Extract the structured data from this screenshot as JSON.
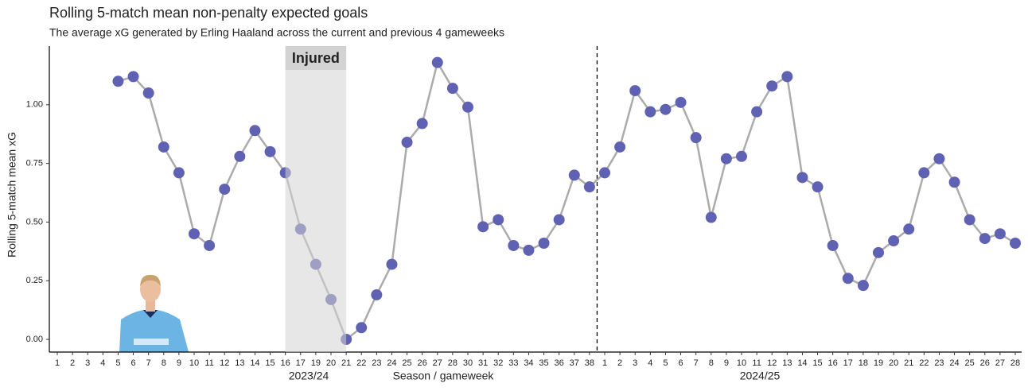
{
  "chart_data": {
    "type": "line",
    "title": "Rolling 5-match mean non-penalty expected goals",
    "subtitle": "The average xG generated by Erling Haaland across the current and previous 4 gameweeks",
    "y_label": "Rolling 5-match mean xG",
    "x_label": "Season / gameweek",
    "season_labels": [
      "2023/24",
      "2024/25"
    ],
    "annotation": "Injured",
    "categories": [
      "1",
      "2",
      "3",
      "4",
      "5",
      "6",
      "7",
      "8",
      "9",
      "10",
      "11",
      "12",
      "13",
      "14",
      "15",
      "16",
      "17",
      "19",
      "20",
      "21",
      "22",
      "23",
      "24",
      "25",
      "26",
      "27",
      "28",
      "30",
      "31",
      "32",
      "33",
      "34",
      "35",
      "36",
      "37",
      "38",
      "1",
      "2",
      "3",
      "4",
      "5",
      "6",
      "7",
      "8",
      "9",
      "10",
      "11",
      "12",
      "13",
      "14",
      "15",
      "16",
      "17",
      "18",
      "19",
      "20",
      "21",
      "22",
      "23",
      "24",
      "25",
      "26",
      "27",
      "28"
    ],
    "values": [
      null,
      null,
      null,
      null,
      1.1,
      1.12,
      1.05,
      0.82,
      0.71,
      0.45,
      0.4,
      0.64,
      0.78,
      0.89,
      0.8,
      0.71,
      0.47,
      0.32,
      0.17,
      0.0,
      0.05,
      0.19,
      0.32,
      0.84,
      0.92,
      1.18,
      1.07,
      0.99,
      0.48,
      0.51,
      0.4,
      0.38,
      0.41,
      0.51,
      0.7,
      0.65,
      0.71,
      0.82,
      1.06,
      0.97,
      0.98,
      1.01,
      0.86,
      0.52,
      0.77,
      0.78,
      0.97,
      1.08,
      1.12,
      0.69,
      0.65,
      0.4,
      0.26,
      0.23,
      0.37,
      0.42,
      0.47,
      0.71,
      0.77,
      0.67,
      0.51,
      0.43,
      0.45,
      0.41
    ],
    "color": "#5f61b2",
    "line_color": "#ababab",
    "ylim": [
      -0.054,
      1.25
    ],
    "yticks": [
      {
        "value": 0,
        "label": "0.00"
      },
      {
        "value": 0.25,
        "label": "0.25"
      },
      {
        "value": 0.5,
        "label": "0.50"
      },
      {
        "value": 0.75,
        "label": "0.75"
      },
      {
        "value": 1,
        "label": "1.00"
      }
    ],
    "grid": false
  }
}
